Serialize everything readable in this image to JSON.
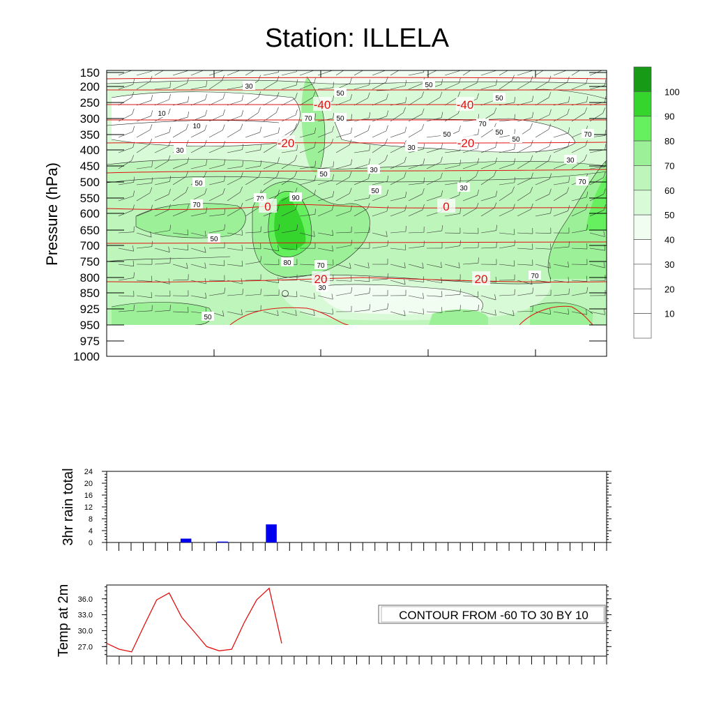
{
  "title": "Station: ILLELA",
  "contour_note": "CONTOUR FROM -60 TO 30 BY 10",
  "colors": {
    "shade_scale": [
      "#ffffff",
      "#ffffff",
      "#ffffff",
      "#f1fdf0",
      "#d9fad6",
      "#bef5ba",
      "#9cf097",
      "#66ef5e",
      "#35d52e",
      "#179a16"
    ],
    "temperature_contour": "#e01010",
    "rain_bar": "#0000ee",
    "temp_line": "#e01010"
  },
  "chart_data": [
    {
      "type": "heatmap",
      "panel": "humidity-cross-section",
      "ylabel": "Pressure (hPa)",
      "yticks": [
        150,
        200,
        250,
        300,
        350,
        400,
        450,
        500,
        550,
        600,
        650,
        700,
        750,
        800,
        850,
        925,
        950,
        975,
        1000
      ],
      "colorbar": {
        "labels": [
          10,
          20,
          30,
          40,
          50,
          60,
          70,
          80,
          90,
          100
        ],
        "levels": [
          "<10",
          "10-20",
          "20-30",
          "30-40",
          "40-50",
          "50-60",
          "60-70",
          "70-80",
          "80-90",
          "90-100",
          ">100"
        ]
      },
      "humidity_contour_labels": [
        "30",
        "10",
        "10",
        "30",
        "50",
        "70",
        "50",
        "50",
        "50",
        "70",
        "90",
        "80",
        "70",
        "70",
        "50",
        "30",
        "30",
        "50",
        "50",
        "70",
        "50",
        "50",
        "50",
        "70",
        "30",
        "30",
        "30",
        "50",
        "70",
        "70",
        "50"
      ],
      "temperature_contours": [
        {
          "label": "-40",
          "pressure": 250
        },
        {
          "label": "-20",
          "pressure": 375
        },
        {
          "label": "0",
          "pressure": 590
        },
        {
          "label": "20",
          "pressure": 805
        }
      ]
    },
    {
      "type": "bar",
      "panel": "rain",
      "ylabel": "3hr rain total",
      "yticks": [
        0,
        4,
        8,
        12,
        16,
        20,
        24
      ],
      "ylim": [
        0,
        24
      ],
      "series": [
        {
          "values": [
            0,
            0,
            0,
            0,
            0,
            0,
            1.3,
            0,
            0,
            0.3,
            0,
            0,
            0,
            6.1,
            0,
            0,
            0,
            0,
            0,
            0,
            0,
            0,
            0,
            0,
            0,
            0,
            0,
            0,
            0,
            0,
            0,
            0,
            0,
            0,
            0,
            0,
            0,
            0,
            0,
            0,
            0
          ]
        }
      ]
    },
    {
      "type": "line",
      "panel": "temperature",
      "ylabel": "Temp at 2m",
      "yticks": [
        "27.0",
        "30.0",
        "33.0",
        "36.0"
      ],
      "ylim": [
        25.2,
        38.6
      ],
      "series": [
        {
          "values": [
            27.6,
            26.5,
            26.0,
            31.0,
            35.8,
            37.1,
            32.5,
            29.8,
            27.0,
            26.2,
            26.5,
            31.5,
            35.8,
            38.0,
            27.6
          ]
        }
      ]
    }
  ]
}
